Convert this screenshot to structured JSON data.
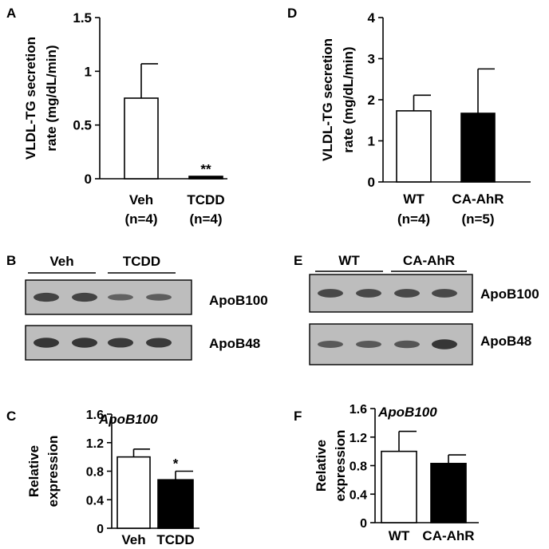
{
  "chart_data": [
    {
      "panel": "A",
      "type": "bar",
      "ylabel_lines": [
        "VLDL-TG secretion",
        "rate (mg/dL/min)"
      ],
      "ylim": [
        0,
        1.5
      ],
      "yticks": [
        0,
        0.5,
        1,
        1.5
      ],
      "ytick_labels": [
        "0",
        "0.5",
        "1",
        "1.5"
      ],
      "categories": [
        "Veh",
        "TCDD"
      ],
      "category_subs": [
        "(n=4)",
        "(n=4)"
      ],
      "values": [
        0.75,
        0.0
      ],
      "errors": [
        0.32,
        0.02
      ],
      "fills": [
        "open",
        "solid"
      ],
      "annotations": [
        "",
        "**"
      ],
      "title": ""
    },
    {
      "panel": "D",
      "type": "bar",
      "ylabel_lines": [
        "VLDL-TG secretion",
        "rate (mg/dL/min)"
      ],
      "ylim": [
        0,
        4
      ],
      "yticks": [
        0,
        1,
        2,
        3,
        4
      ],
      "ytick_labels": [
        "0",
        "1",
        "2",
        "3",
        "4"
      ],
      "categories": [
        "WT",
        "CA-AhR"
      ],
      "category_subs": [
        "(n=4)",
        "(n=5)"
      ],
      "values": [
        1.73,
        1.67
      ],
      "errors": [
        0.38,
        1.08
      ],
      "fills": [
        "open",
        "solid"
      ],
      "annotations": [
        "",
        ""
      ],
      "title": ""
    },
    {
      "panel": "C",
      "type": "bar",
      "ylabel_lines": [
        "Relative",
        "expression"
      ],
      "ylim": [
        0,
        1.6
      ],
      "yticks": [
        0,
        0.4,
        0.8,
        1.2,
        1.6
      ],
      "ytick_labels": [
        "0",
        "0.4",
        "0.8",
        "1.2",
        "1.6"
      ],
      "categories": [
        "Veh",
        "TCDD"
      ],
      "category_subs": [
        "",
        ""
      ],
      "values": [
        1.0,
        0.68
      ],
      "errors": [
        0.11,
        0.12
      ],
      "fills": [
        "open",
        "solid"
      ],
      "annotations": [
        "",
        "*"
      ],
      "title": "ApoB100"
    },
    {
      "panel": "F",
      "type": "bar",
      "ylabel_lines": [
        "Relative",
        "expression"
      ],
      "ylim": [
        0,
        1.6
      ],
      "yticks": [
        0,
        0.4,
        0.8,
        1.2,
        1.6
      ],
      "ytick_labels": [
        "0",
        "0.4",
        "0.8",
        "1.2",
        "1.6"
      ],
      "categories": [
        "WT",
        "CA-AhR"
      ],
      "category_subs": [
        "",
        ""
      ],
      "values": [
        1.0,
        0.83
      ],
      "errors": [
        0.28,
        0.12
      ],
      "fills": [
        "open",
        "solid"
      ],
      "annotations": [
        "",
        ""
      ],
      "title": "ApoB100"
    }
  ],
  "blots": {
    "B": {
      "panel": "B",
      "groups": [
        "Veh",
        "TCDD"
      ],
      "bands": [
        {
          "label": "ApoB100",
          "intensity": [
            0.8,
            0.8,
            0.45,
            0.5
          ]
        },
        {
          "label": "ApoB48",
          "intensity": [
            0.95,
            0.95,
            0.9,
            0.9
          ]
        }
      ]
    },
    "E": {
      "panel": "E",
      "groups": [
        "WT",
        "CA-AhR"
      ],
      "bands": [
        {
          "label": "ApoB100",
          "intensity": [
            0.75,
            0.75,
            0.75,
            0.75
          ]
        },
        {
          "label": "ApoB48",
          "intensity": [
            0.55,
            0.55,
            0.6,
            0.95
          ]
        }
      ]
    }
  },
  "colors": {
    "axis": "#000000",
    "bar_solid": "#000000",
    "bar_open": "#ffffff",
    "blot_bg": "#bdbdbd",
    "band": "#2a2a2a"
  }
}
